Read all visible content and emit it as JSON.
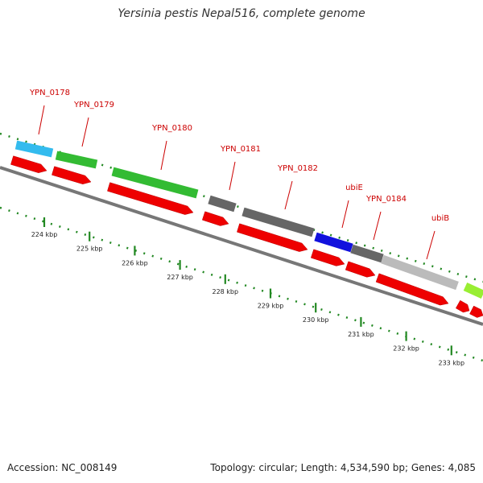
{
  "title": "Yersinia pestis Nepal516, complete genome",
  "footer": {
    "accession": "Accession: NC_008149",
    "topology": "Topology: circular; Length: 4,534,590 bp; Genes: 4,085"
  },
  "colors": {
    "cds_red": "#ee0000",
    "backbone": "#888888",
    "tick_green": "#228822",
    "label_red": "#cc0000"
  },
  "kbp_labels": [
    "224 kbp",
    "225 kbp",
    "226 kbp",
    "227 kbp",
    "228 kbp",
    "229 kbp",
    "230 kbp",
    "231 kbp",
    "232 kbp",
    "233 kbp"
  ],
  "gene_labels": [
    "YPN_0178",
    "YPN_0179",
    "YPN_0180",
    "YPN_0181",
    "YPN_0182",
    "ubiE",
    "YPN_0184",
    "ubiB"
  ],
  "cog_colors": [
    "#33bbee",
    "#33bb33",
    "#33bb33",
    "#666666",
    "#666666",
    "#1111dd",
    "#666666",
    "#bbbbbb",
    "#99ee33"
  ]
}
